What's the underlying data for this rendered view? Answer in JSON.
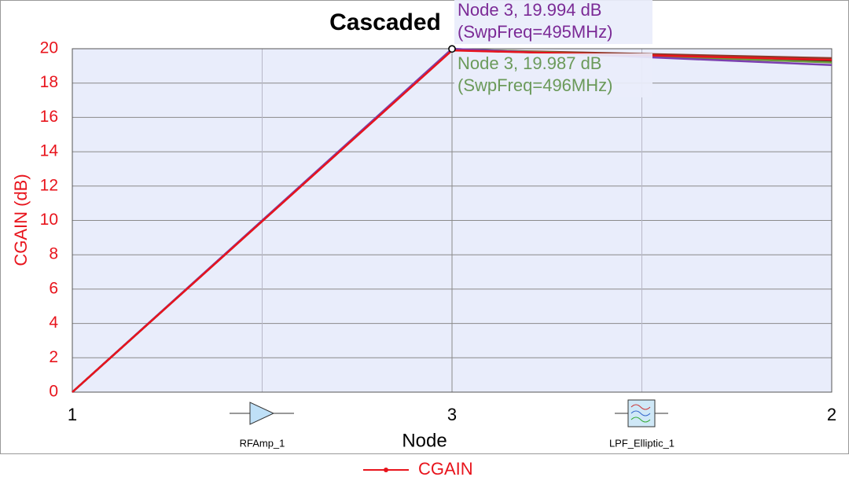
{
  "chart_data": {
    "type": "line",
    "title": "Cascaded",
    "xlabel": "Node",
    "ylabel": "CGAIN (dB)",
    "categories": [
      "1",
      "3",
      "2"
    ],
    "components": [
      "RFAmp_1",
      "LPF_Elliptic_1"
    ],
    "series": [
      {
        "name": "CGAIN",
        "color": "#e8141c",
        "values": [
          0,
          19.9,
          19.35
        ]
      },
      {
        "color": "#7b3fb0",
        "values": [
          0,
          19.994,
          19.05
        ]
      },
      {
        "color": "#6b9a3a",
        "values": [
          0,
          19.987,
          19.2
        ]
      },
      {
        "color": "#8b3a2a",
        "values": [
          0,
          19.95,
          19.45
        ]
      },
      {
        "color": "#222222",
        "values": [
          0,
          19.92,
          19.3
        ]
      }
    ],
    "annotations": [
      {
        "lines": [
          "Node 3, 19.994 dB",
          "(SwpFreq=495MHz)"
        ],
        "color": "#7b2a96",
        "series": 1,
        "point": 1
      },
      {
        "lines": [
          "Node 3, 19.987 dB",
          "(SwpFreq=496MHz)"
        ],
        "color": "#6b9a5a",
        "series": 2,
        "point": 1
      }
    ],
    "ylim": [
      0,
      20
    ],
    "yticks": [
      0,
      2,
      4,
      6,
      8,
      10,
      12,
      14,
      16,
      18,
      20
    ],
    "grid": true,
    "tick_color": "#e8141c"
  }
}
